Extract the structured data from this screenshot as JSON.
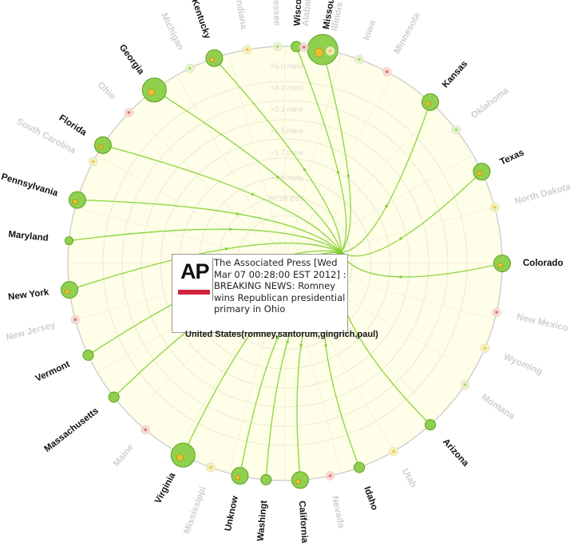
{
  "visualization": {
    "center_label": "United States(romney,santorum,gingrich,paul)",
    "radial_ticks": [
      "+5.0 mins",
      "+4.2 mins",
      "+3.3 mins",
      "+2.5 mins",
      "+1.7 mins",
      "+0.8 mins",
      "00:28 EST"
    ]
  },
  "states": [
    {
      "name": "Wisconsin",
      "active": true,
      "size": "small"
    },
    {
      "name": "Missouri",
      "active": true,
      "size": "xlarge"
    },
    {
      "name": "Iowa",
      "active": false
    },
    {
      "name": "Minnesota",
      "active": false
    },
    {
      "name": "Kansas",
      "active": true,
      "size": "medium"
    },
    {
      "name": "Oklahoma",
      "active": false
    },
    {
      "name": "Texas",
      "active": true,
      "size": "medium"
    },
    {
      "name": "North Dakota",
      "active": false
    },
    {
      "name": "Colorado",
      "active": true,
      "size": "medium"
    },
    {
      "name": "New Mexico",
      "active": false
    },
    {
      "name": "Wyoming",
      "active": false
    },
    {
      "name": "Montana",
      "active": false
    },
    {
      "name": "Arizona",
      "active": true,
      "size": "small"
    },
    {
      "name": "Utah",
      "active": false
    },
    {
      "name": "Idaho",
      "active": true,
      "size": "small"
    },
    {
      "name": "Nevada",
      "active": false
    },
    {
      "name": "California",
      "active": true,
      "size": "medium"
    },
    {
      "name": "Washingt",
      "active": true,
      "size": "small"
    },
    {
      "name": "Unknow",
      "active": true,
      "size": "medium"
    },
    {
      "name": "Mississippi",
      "active": false
    },
    {
      "name": "Virginia",
      "active": true,
      "size": "large"
    },
    {
      "name": "Maine",
      "active": false
    },
    {
      "name": "Massachusetts",
      "active": true,
      "size": "small"
    },
    {
      "name": "Vermont",
      "active": true,
      "size": "small"
    },
    {
      "name": "New Jersey",
      "active": false
    },
    {
      "name": "New York",
      "active": true,
      "size": "medium"
    },
    {
      "name": "Maryland",
      "active": true,
      "size": "tiny"
    },
    {
      "name": "Pennsylvania",
      "active": true,
      "size": "medium"
    },
    {
      "name": "South Carolina",
      "active": false
    },
    {
      "name": "Florida",
      "active": true,
      "size": "medium"
    },
    {
      "name": "Ohio",
      "active": false
    },
    {
      "name": "Georgia",
      "active": true,
      "size": "large"
    },
    {
      "name": "Michigan",
      "active": false
    },
    {
      "name": "Kentucky",
      "active": true,
      "size": "medium"
    },
    {
      "name": "Indiana",
      "active": false
    },
    {
      "name": "Tennessee",
      "active": false
    },
    {
      "name": "Alabama",
      "active": false
    },
    {
      "name": "Illinois",
      "active": false
    }
  ],
  "tooltip": {
    "logo_text": "AP",
    "source": "The Associated Press",
    "timestamp": "[Wed Mar 07 00:28:00 EST 2012] : BREAKING",
    "body": "NEWS: Romney wins Republican presidential primary in Ohio"
  },
  "colors": {
    "background": "#fffee8",
    "node_green": "#8fd14f",
    "node_stroke": "#5c9e1f",
    "edge": "#7fcf2a",
    "ring": "#c8c8c8"
  }
}
